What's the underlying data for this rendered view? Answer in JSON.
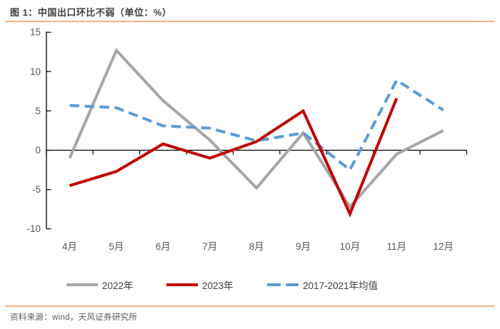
{
  "title": "图 1：中国出口环比不弱（单位：%）",
  "source": "资料来源：wind，天风证券研究所",
  "colors": {
    "accent_rule": "#F4B183",
    "gray_series": "#A6A6A6",
    "red_series": "#C00000",
    "blue_series": "#5B9BD5",
    "axis_line": "#000000",
    "tick_label": "#595959",
    "title_text": "#3F3F3F",
    "footer_text": "#595959"
  },
  "legend": [
    {
      "label": "2022年",
      "color": "#A6A6A6",
      "style": "solid"
    },
    {
      "label": "2023年",
      "color": "#C00000",
      "style": "solid"
    },
    {
      "label": "2017-2021年均值",
      "color": "#5B9BD5",
      "style": "dashed"
    }
  ],
  "chart_data": {
    "type": "line",
    "title": "图 1：中国出口环比不弱（单位：%）",
    "categories": [
      "4月",
      "5月",
      "6月",
      "7月",
      "8月",
      "9月",
      "10月",
      "11月",
      "12月"
    ],
    "series": [
      {
        "name": "2022年",
        "color": "#A6A6A6",
        "dash": false,
        "values": [
          -1.0,
          12.7,
          6.3,
          1.3,
          -4.8,
          2.2,
          -7.2,
          -0.5,
          2.5
        ]
      },
      {
        "name": "2023年",
        "color": "#C00000",
        "dash": false,
        "values": [
          -4.5,
          -2.7,
          0.8,
          -1.0,
          1.1,
          5.0,
          -8.1,
          6.6,
          null
        ]
      },
      {
        "name": "2017-2021年均值",
        "color": "#5B9BD5",
        "dash": true,
        "values": [
          5.7,
          5.4,
          3.1,
          2.8,
          1.2,
          2.2,
          -2.5,
          8.9,
          5.1
        ]
      }
    ],
    "ylim": [
      -10,
      15
    ],
    "yticks": [
      15,
      10,
      5,
      0,
      -5,
      -10
    ],
    "ytick_labels": [
      "15",
      "10",
      "5",
      "0",
      "-5",
      "-10"
    ],
    "unit": "%",
    "grid": false,
    "legend_position": "bottom",
    "xlabel": "",
    "ylabel": ""
  }
}
